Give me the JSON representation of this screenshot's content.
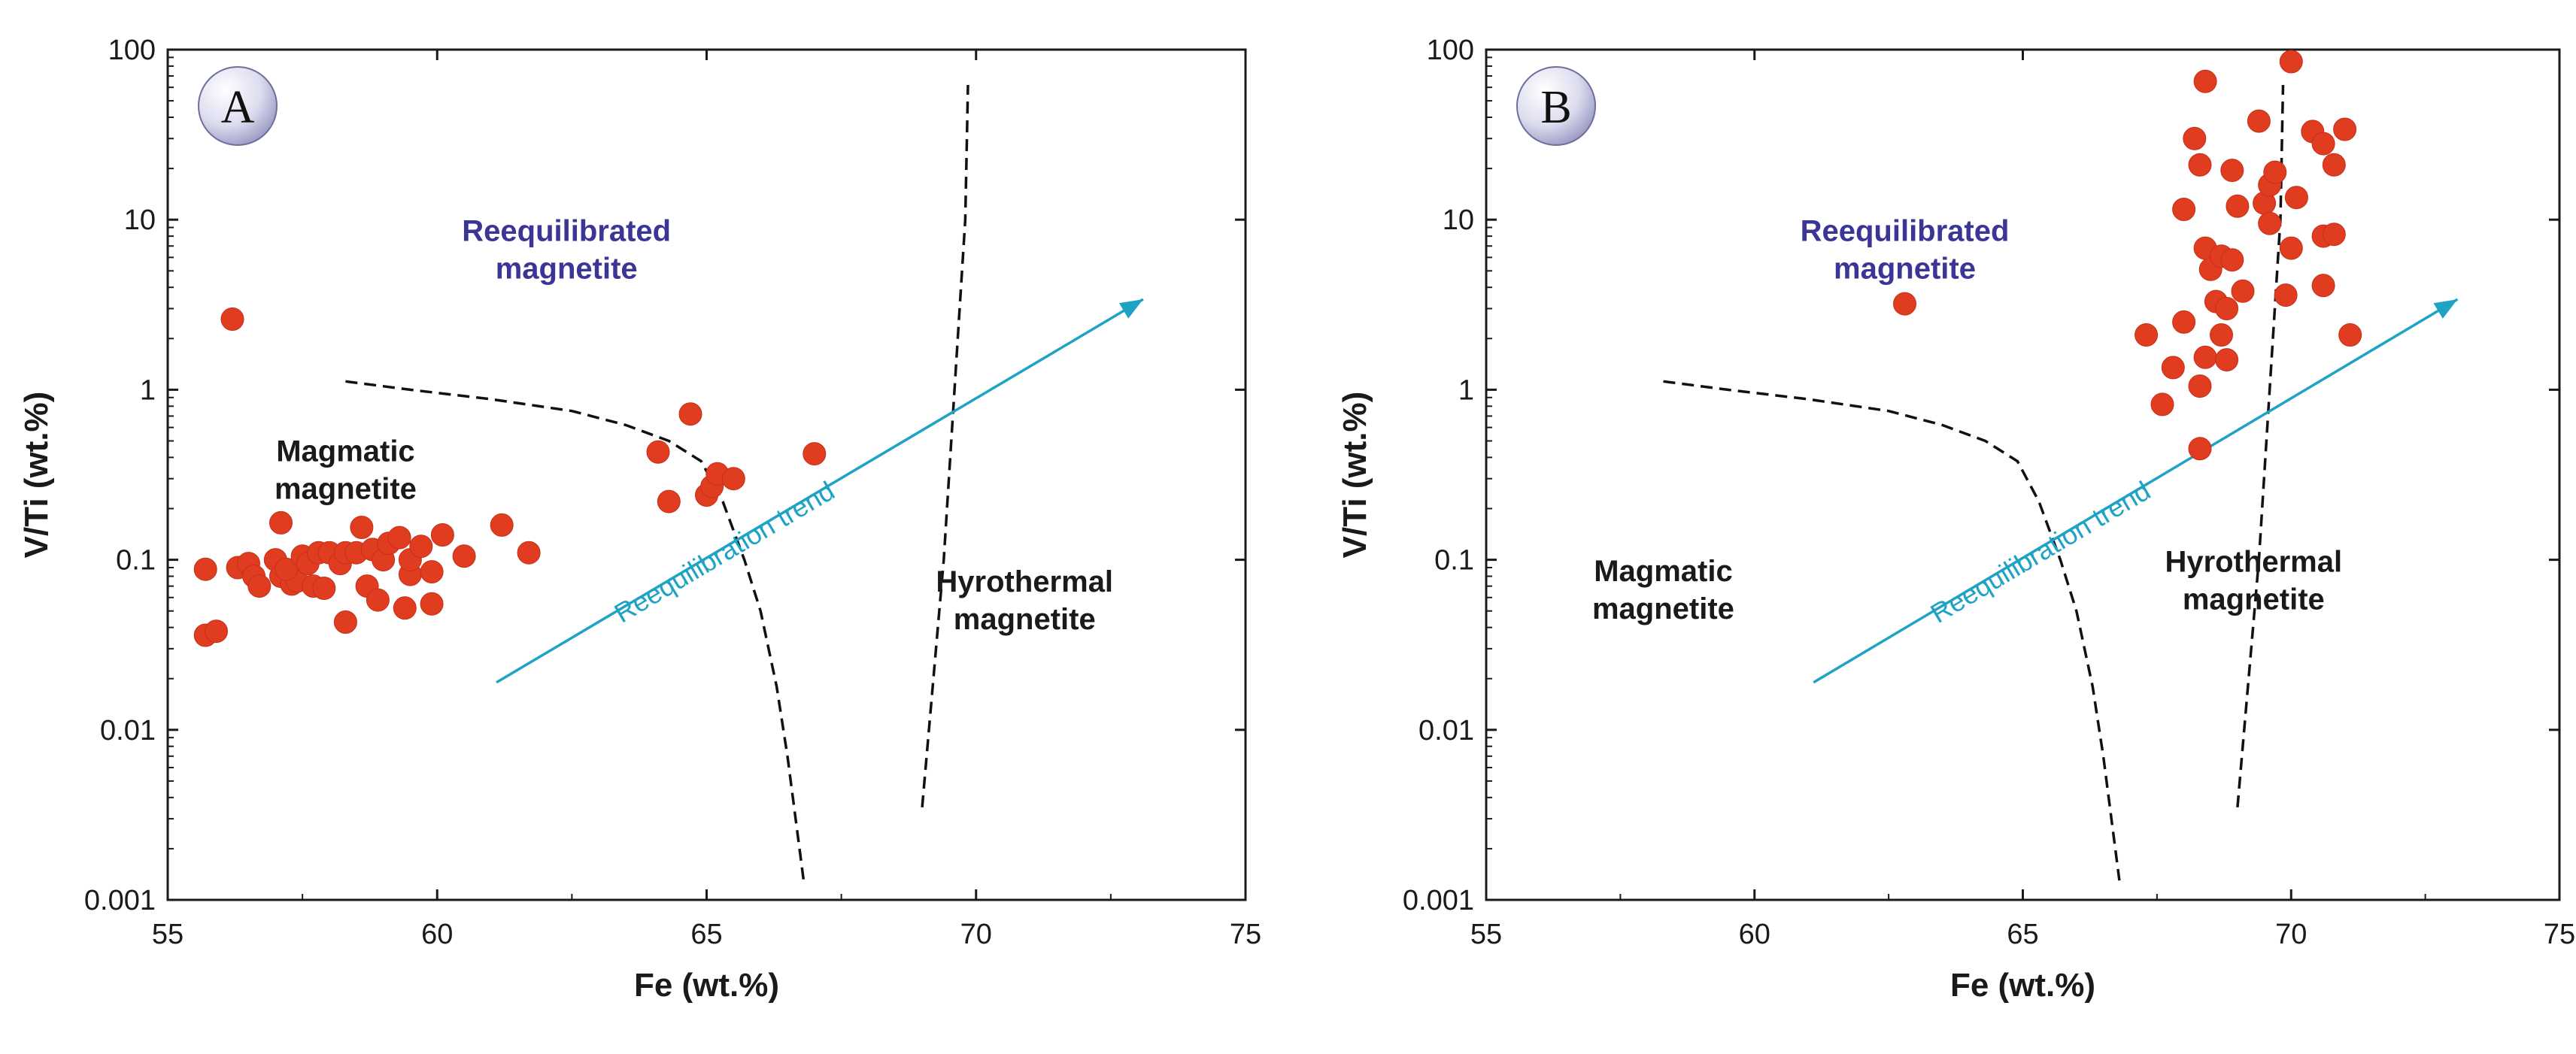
{
  "chart_data": [
    {
      "type": "scatter",
      "panel_label": "A",
      "xlabel": "Fe (wt.%)",
      "ylabel": "V/Ti (wt.%)",
      "xlim": [
        55,
        75
      ],
      "ylim": [
        0.001,
        100
      ],
      "yscale": "log",
      "x_ticks": [
        "55",
        "60",
        "65",
        "70",
        "75"
      ],
      "y_ticks": [
        "0.001",
        "0.01",
        "0.1",
        "1",
        "10",
        "100"
      ],
      "regions": [
        {
          "name": "magmatic",
          "label_lines": [
            "Magmatic",
            "magnetite"
          ],
          "x": 58.3,
          "y": 0.38
        },
        {
          "name": "reequilibrated",
          "label_lines": [
            "Reequilibrated",
            "magnetite"
          ],
          "x": 62.4,
          "y": 7.5
        },
        {
          "name": "hydrothermal",
          "label_lines": [
            "Hyrothermal",
            "magnetite"
          ],
          "x": 70.9,
          "y": 0.065
        }
      ],
      "trend": {
        "label": "Reequilibration trend",
        "from": [
          61.1,
          0.019
        ],
        "to": [
          73.1,
          3.4
        ]
      },
      "boundaries": [
        {
          "name": "magmatic-reequilibrated",
          "points": [
            [
              58.3,
              1.12
            ],
            [
              59.5,
              1.0
            ],
            [
              61.0,
              0.88
            ],
            [
              62.5,
              0.75
            ],
            [
              63.5,
              0.62
            ],
            [
              64.3,
              0.5
            ],
            [
              64.9,
              0.38
            ],
            [
              65.3,
              0.22
            ],
            [
              65.7,
              0.1
            ],
            [
              66.0,
              0.05
            ],
            [
              66.3,
              0.018
            ],
            [
              66.5,
              0.007
            ],
            [
              66.8,
              0.0013
            ]
          ]
        },
        {
          "name": "reequilibrated-hydrothermal",
          "points": [
            [
              69.0,
              0.0035
            ],
            [
              69.4,
              0.1
            ],
            [
              69.6,
              1.0
            ],
            [
              69.8,
              10
            ],
            [
              69.85,
              62
            ]
          ]
        }
      ],
      "series": [
        {
          "name": "magnetite",
          "color": "#e03c1f",
          "points": [
            [
              56.2,
              2.6
            ],
            [
              55.7,
              0.088
            ],
            [
              55.7,
              0.036
            ],
            [
              55.9,
              0.038
            ],
            [
              56.3,
              0.09
            ],
            [
              56.5,
              0.095
            ],
            [
              56.6,
              0.08
            ],
            [
              56.7,
              0.07
            ],
            [
              57.0,
              0.1
            ],
            [
              57.1,
              0.165
            ],
            [
              57.1,
              0.08
            ],
            [
              57.3,
              0.072
            ],
            [
              57.4,
              0.075
            ],
            [
              57.2,
              0.088
            ],
            [
              57.5,
              0.105
            ],
            [
              57.6,
              0.095
            ],
            [
              57.7,
              0.07
            ],
            [
              57.8,
              0.11
            ],
            [
              57.9,
              0.068
            ],
            [
              58.0,
              0.11
            ],
            [
              58.2,
              0.095
            ],
            [
              58.3,
              0.11
            ],
            [
              58.3,
              0.043
            ],
            [
              58.5,
              0.11
            ],
            [
              58.6,
              0.155
            ],
            [
              58.7,
              0.07
            ],
            [
              58.8,
              0.115
            ],
            [
              58.9,
              0.058
            ],
            [
              59.0,
              0.1
            ],
            [
              59.1,
              0.125
            ],
            [
              59.3,
              0.135
            ],
            [
              59.4,
              0.052
            ],
            [
              59.5,
              0.082
            ],
            [
              59.5,
              0.1
            ],
            [
              59.7,
              0.12
            ],
            [
              59.9,
              0.085
            ],
            [
              59.9,
              0.055
            ],
            [
              60.1,
              0.14
            ],
            [
              60.5,
              0.105
            ],
            [
              61.2,
              0.16
            ],
            [
              61.7,
              0.11
            ],
            [
              64.1,
              0.43
            ],
            [
              64.3,
              0.22
            ],
            [
              64.7,
              0.72
            ],
            [
              65.0,
              0.24
            ],
            [
              65.1,
              0.27
            ],
            [
              65.2,
              0.32
            ],
            [
              65.5,
              0.3
            ],
            [
              67.0,
              0.42
            ]
          ]
        }
      ]
    },
    {
      "type": "scatter",
      "panel_label": "B",
      "xlabel": "Fe (wt.%)",
      "ylabel": "V/Ti (wt.%)",
      "xlim": [
        55,
        75
      ],
      "ylim": [
        0.001,
        100
      ],
      "yscale": "log",
      "x_ticks": [
        "55",
        "60",
        "65",
        "70",
        "75"
      ],
      "y_ticks": [
        "0.001",
        "0.01",
        "0.1",
        "1",
        "10",
        "100"
      ],
      "regions": [
        {
          "name": "magmatic",
          "label_lines": [
            "Magmatic",
            "magnetite"
          ],
          "x": 58.3,
          "y": 0.075
        },
        {
          "name": "reequilibrated",
          "label_lines": [
            "Reequilibrated",
            "magnetite"
          ],
          "x": 62.8,
          "y": 7.5
        },
        {
          "name": "hydrothermal",
          "label_lines": [
            "Hyrothermal",
            "magnetite"
          ],
          "x": 69.3,
          "y": 0.085
        }
      ],
      "trend": {
        "label": "Reequilibration trend",
        "from": [
          61.1,
          0.019
        ],
        "to": [
          73.1,
          3.4
        ]
      },
      "boundaries": [
        {
          "name": "magmatic-reequilibrated",
          "points": [
            [
              58.3,
              1.12
            ],
            [
              59.5,
              1.0
            ],
            [
              61.0,
              0.88
            ],
            [
              62.5,
              0.75
            ],
            [
              63.5,
              0.62
            ],
            [
              64.3,
              0.5
            ],
            [
              64.9,
              0.38
            ],
            [
              65.3,
              0.22
            ],
            [
              65.7,
              0.1
            ],
            [
              66.0,
              0.05
            ],
            [
              66.3,
              0.018
            ],
            [
              66.5,
              0.007
            ],
            [
              66.8,
              0.0013
            ]
          ]
        },
        {
          "name": "reequilibrated-hydrothermal",
          "points": [
            [
              69.0,
              0.0035
            ],
            [
              69.4,
              0.1
            ],
            [
              69.6,
              1.0
            ],
            [
              69.8,
              10
            ],
            [
              69.85,
              62
            ]
          ]
        }
      ],
      "series": [
        {
          "name": "magnetite",
          "color": "#e03c1f",
          "points": [
            [
              62.8,
              3.2
            ],
            [
              68.3,
              0.45
            ],
            [
              67.3,
              2.1
            ],
            [
              67.6,
              0.82
            ],
            [
              67.8,
              1.35
            ],
            [
              68.0,
              2.5
            ],
            [
              68.0,
              11.5
            ],
            [
              68.2,
              30
            ],
            [
              68.3,
              21
            ],
            [
              68.4,
              65
            ],
            [
              68.3,
              1.05
            ],
            [
              68.4,
              1.55
            ],
            [
              68.4,
              6.8
            ],
            [
              68.5,
              5.1
            ],
            [
              68.6,
              3.3
            ],
            [
              68.7,
              2.1
            ],
            [
              68.7,
              6.1
            ],
            [
              68.8,
              3.0
            ],
            [
              68.8,
              1.5
            ],
            [
              68.9,
              5.8
            ],
            [
              68.9,
              19.5
            ],
            [
              69.0,
              12
            ],
            [
              69.1,
              3.8
            ],
            [
              69.4,
              38
            ],
            [
              69.5,
              12.5
            ],
            [
              69.6,
              9.5
            ],
            [
              69.6,
              16
            ],
            [
              69.7,
              19
            ],
            [
              69.9,
              3.6
            ],
            [
              70.0,
              6.8
            ],
            [
              70.0,
              85
            ],
            [
              70.1,
              13.5
            ],
            [
              70.4,
              33
            ],
            [
              70.6,
              4.1
            ],
            [
              70.6,
              28
            ],
            [
              70.6,
              8.0
            ],
            [
              70.8,
              8.2
            ],
            [
              70.8,
              21
            ],
            [
              71.0,
              34
            ],
            [
              71.1,
              2.1
            ]
          ]
        }
      ]
    }
  ]
}
